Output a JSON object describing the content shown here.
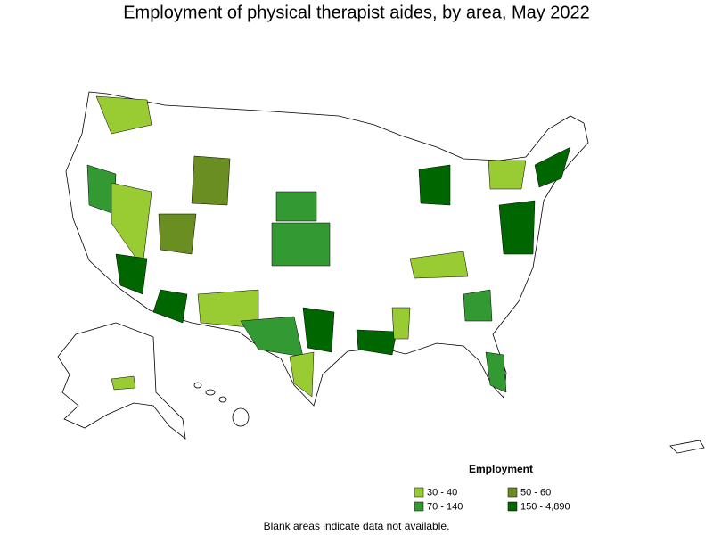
{
  "title": "Employment of physical therapist aides, by area, May 2022",
  "legend": {
    "title": "Employment",
    "items": [
      {
        "label": "30 - 40",
        "color": "#99cc33"
      },
      {
        "label": "50 - 60",
        "color": "#6b8e23"
      },
      {
        "label": "70 - 140",
        "color": "#339933"
      },
      {
        "label": "150 - 4,890",
        "color": "#006600"
      }
    ]
  },
  "footnote": "Blank areas indicate data not available."
}
